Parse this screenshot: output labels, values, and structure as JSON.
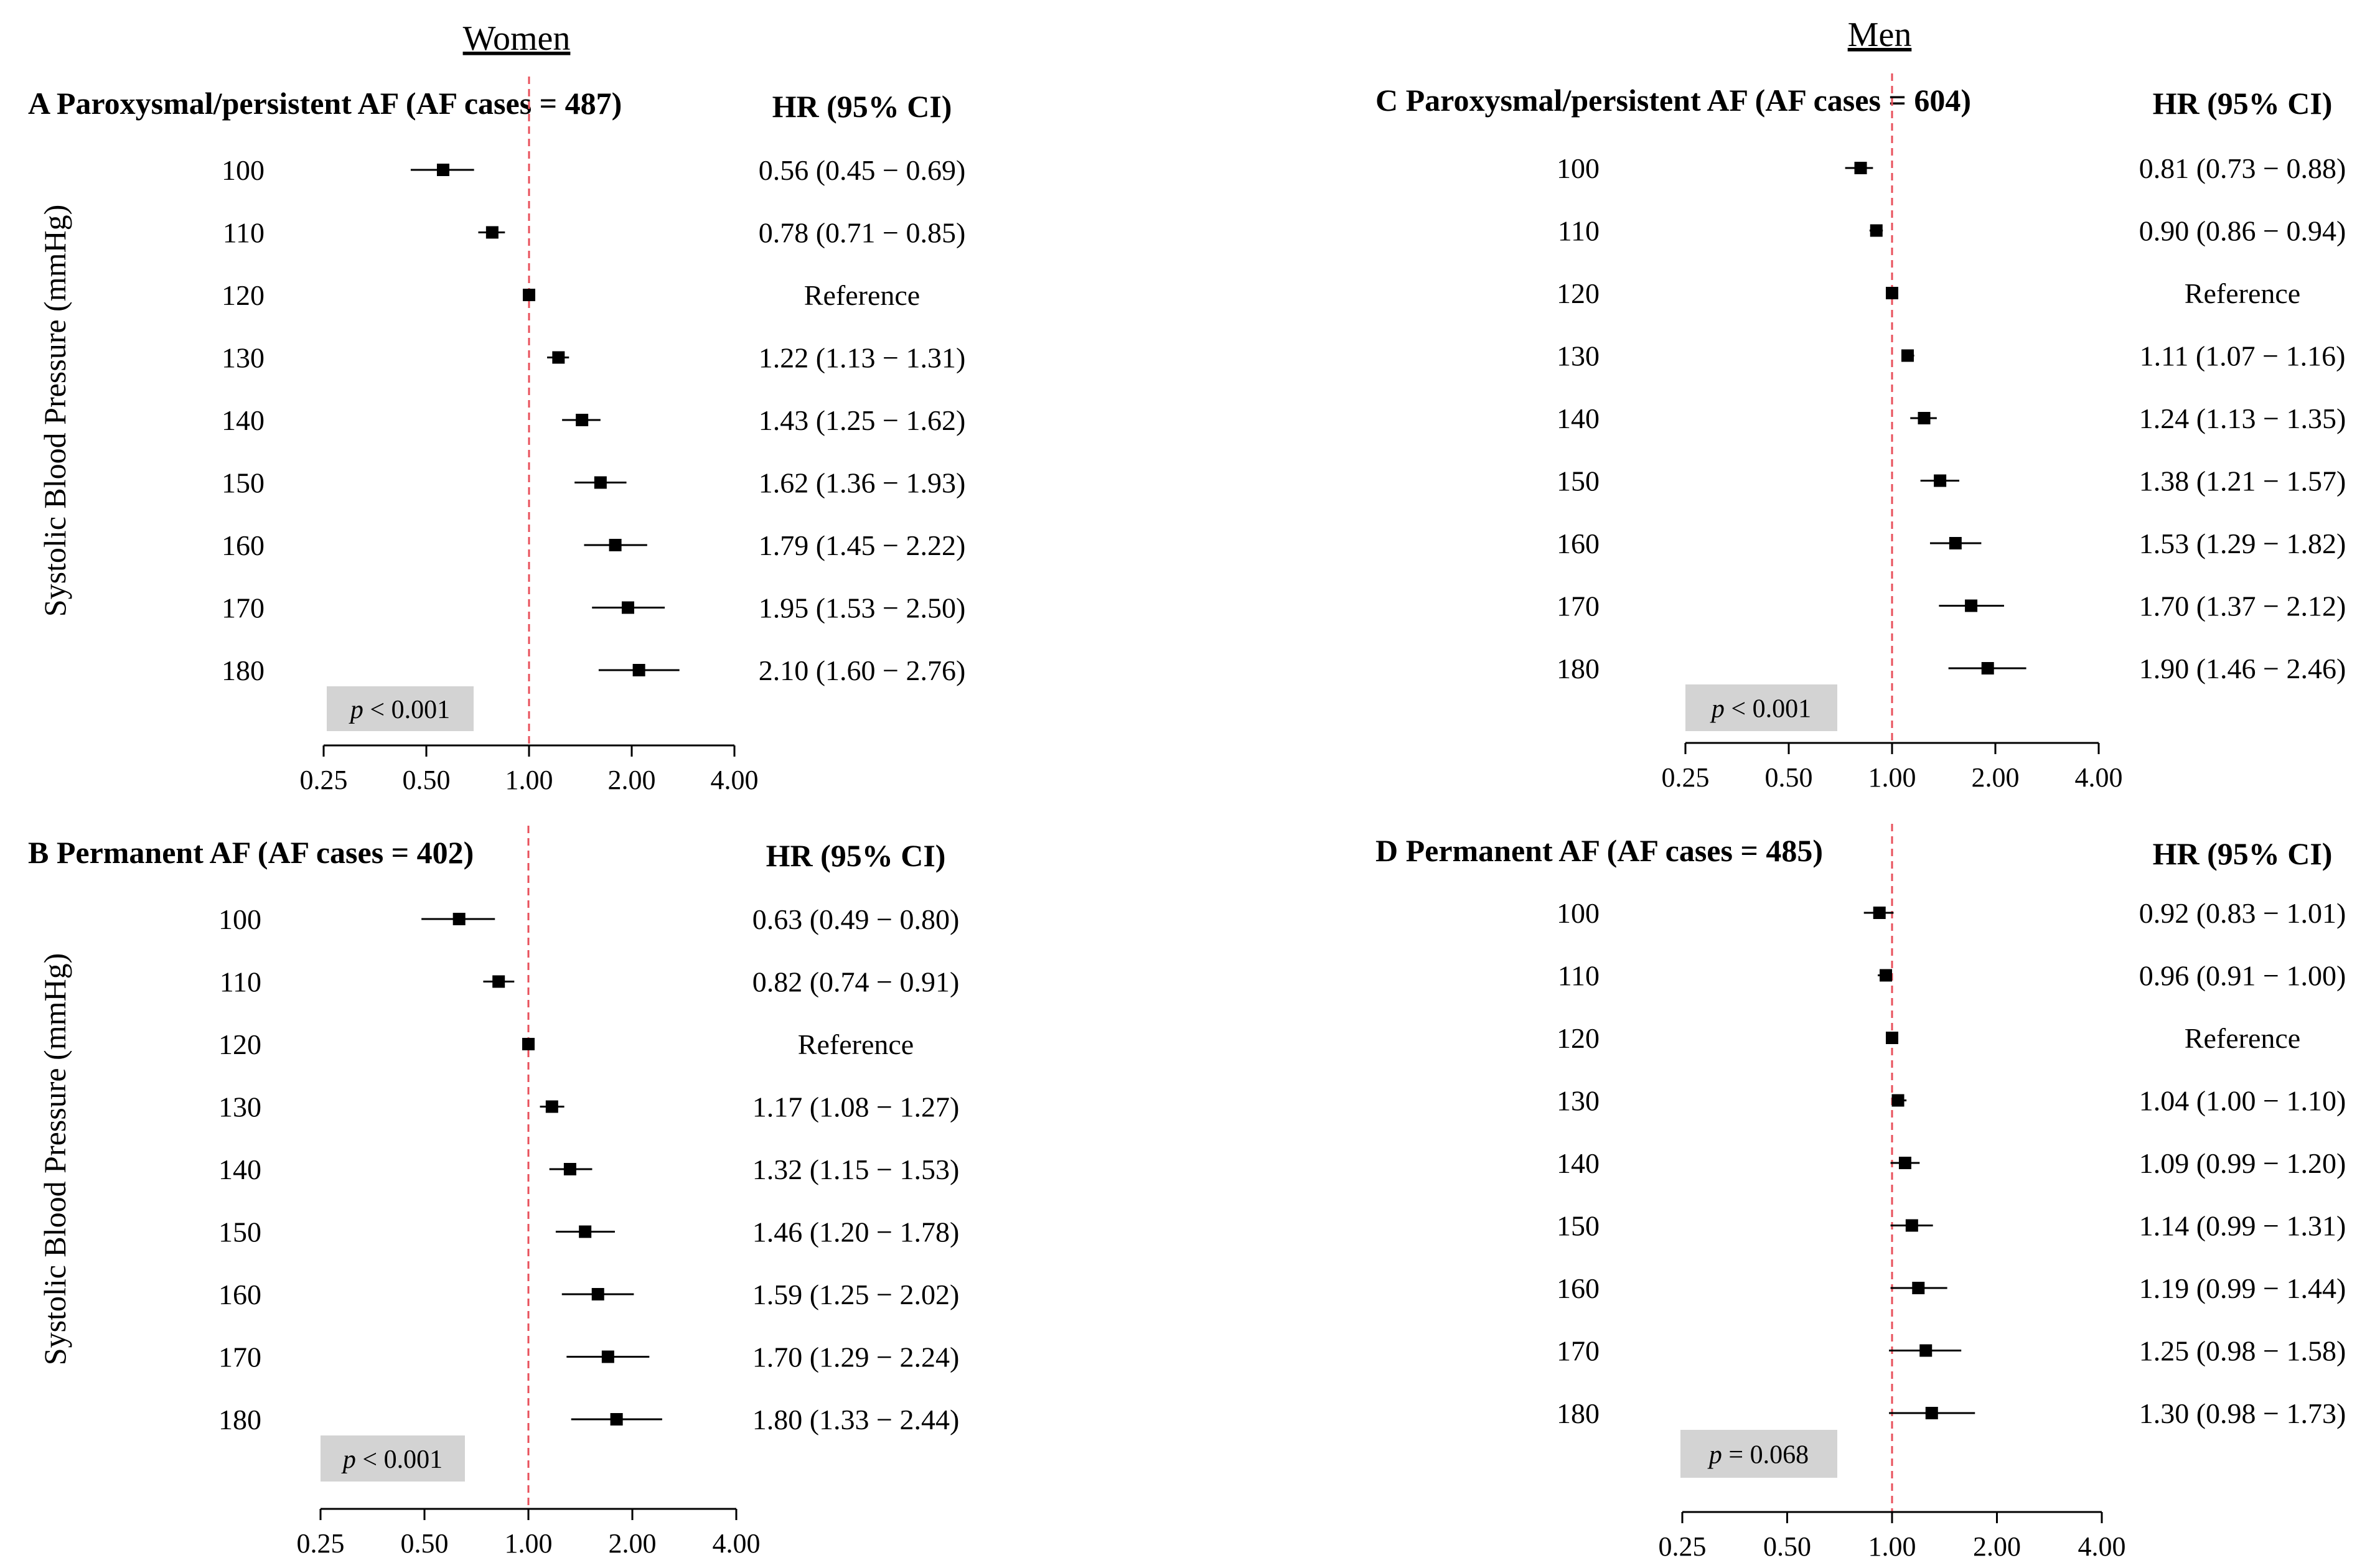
{
  "headers": {
    "women": "Women",
    "men": "Men"
  },
  "ylabel": "Systolic Blood Pressure (mmHg)",
  "column_header": "HR (95% CI)",
  "colors": {
    "reference_line": "#e8505b",
    "marker": "#000000",
    "pbox": "#d3d3d3",
    "ci_light": "#b0b0b0"
  },
  "chart_data": [
    {
      "panel": "A",
      "group": "Women",
      "type": "forest",
      "title": "A Paroxysmal/persistent AF (AF cases = 487)",
      "xscale": "log2",
      "xlim": [
        0.25,
        4.0
      ],
      "xticks": [
        "0.25",
        "0.50",
        "1.00",
        "2.00",
        "4.00"
      ],
      "categories": [
        "100",
        "110",
        "120",
        "130",
        "140",
        "150",
        "160",
        "170",
        "180"
      ],
      "hr": [
        0.56,
        0.78,
        1.0,
        1.22,
        1.43,
        1.62,
        1.79,
        1.95,
        2.1
      ],
      "lower": [
        0.45,
        0.71,
        1.0,
        1.13,
        1.25,
        1.36,
        1.45,
        1.53,
        1.6
      ],
      "upper": [
        0.69,
        0.85,
        1.0,
        1.31,
        1.62,
        1.93,
        2.22,
        2.5,
        2.76
      ],
      "labels": [
        "0.56 (0.45 − 0.69)",
        "0.78 (0.71 − 0.85)",
        "Reference",
        "1.22 (1.13 − 1.31)",
        "1.43 (1.25 − 1.62)",
        "1.62 (1.36 − 1.93)",
        "1.79 (1.45 − 2.22)",
        "1.95 (1.53 − 2.50)",
        "2.10 (1.60 − 2.76)"
      ],
      "p_prefix": "p",
      "p_rest": " < 0.001"
    },
    {
      "panel": "B",
      "group": "Women",
      "type": "forest",
      "title": "B Permanent AF (AF cases = 402)",
      "xscale": "log2",
      "xlim": [
        0.25,
        4.0
      ],
      "xticks": [
        "0.25",
        "0.50",
        "1.00",
        "2.00",
        "4.00"
      ],
      "categories": [
        "100",
        "110",
        "120",
        "130",
        "140",
        "150",
        "160",
        "170",
        "180"
      ],
      "hr": [
        0.63,
        0.82,
        1.0,
        1.17,
        1.32,
        1.46,
        1.59,
        1.7,
        1.8
      ],
      "lower": [
        0.49,
        0.74,
        1.0,
        1.08,
        1.15,
        1.2,
        1.25,
        1.29,
        1.33
      ],
      "upper": [
        0.8,
        0.91,
        1.0,
        1.27,
        1.53,
        1.78,
        2.02,
        2.24,
        2.44
      ],
      "labels": [
        "0.63 (0.49 − 0.80)",
        "0.82 (0.74 − 0.91)",
        "Reference",
        "1.17 (1.08 − 1.27)",
        "1.32 (1.15 − 1.53)",
        "1.46 (1.20 − 1.78)",
        "1.59 (1.25 − 2.02)",
        "1.70 (1.29 − 2.24)",
        "1.80 (1.33 − 2.44)"
      ],
      "p_prefix": "p",
      "p_rest": " < 0.001"
    },
    {
      "panel": "C",
      "group": "Men",
      "type": "forest",
      "title": "C Paroxysmal/persistent AF (AF cases = 604)",
      "xscale": "log2",
      "xlim": [
        0.25,
        4.0
      ],
      "xticks": [
        "0.25",
        "0.50",
        "1.00",
        "2.00",
        "4.00"
      ],
      "categories": [
        "100",
        "110",
        "120",
        "130",
        "140",
        "150",
        "160",
        "170",
        "180"
      ],
      "hr": [
        0.81,
        0.9,
        1.0,
        1.11,
        1.24,
        1.38,
        1.53,
        1.7,
        1.9
      ],
      "lower": [
        0.73,
        0.86,
        1.0,
        1.07,
        1.13,
        1.21,
        1.29,
        1.37,
        1.46
      ],
      "upper": [
        0.88,
        0.94,
        1.0,
        1.16,
        1.35,
        1.57,
        1.82,
        2.12,
        2.46
      ],
      "labels": [
        "0.81 (0.73 − 0.88)",
        "0.90 (0.86 − 0.94)",
        "Reference",
        "1.11 (1.07 − 1.16)",
        "1.24 (1.13 − 1.35)",
        "1.38 (1.21 − 1.57)",
        "1.53 (1.29 − 1.82)",
        "1.70 (1.37 − 2.12)",
        "1.90 (1.46 − 2.46)"
      ],
      "p_prefix": "p",
      "p_rest": " < 0.001"
    },
    {
      "panel": "D",
      "group": "Men",
      "type": "forest",
      "title": "D Permanent AF (AF cases = 485)",
      "xscale": "log2",
      "xlim": [
        0.25,
        4.0
      ],
      "xticks": [
        "0.25",
        "0.50",
        "1.00",
        "2.00",
        "4.00"
      ],
      "categories": [
        "100",
        "110",
        "120",
        "130",
        "140",
        "150",
        "160",
        "170",
        "180"
      ],
      "hr": [
        0.92,
        0.96,
        1.0,
        1.04,
        1.09,
        1.14,
        1.19,
        1.25,
        1.3
      ],
      "lower": [
        0.83,
        0.91,
        1.0,
        1.0,
        0.99,
        0.99,
        0.99,
        0.98,
        0.98
      ],
      "upper": [
        1.01,
        1.0,
        1.0,
        1.1,
        1.2,
        1.31,
        1.44,
        1.58,
        1.73
      ],
      "labels": [
        "0.92 (0.83 − 1.01)",
        "0.96 (0.91 − 1.00)",
        "Reference",
        "1.04 (1.00 − 1.10)",
        "1.09 (0.99 − 1.20)",
        "1.14 (0.99 − 1.31)",
        "1.19 (0.99 − 1.44)",
        "1.25 (0.98 − 1.58)",
        "1.30 (0.98 − 1.73)"
      ],
      "p_prefix": "p",
      "p_rest": " = 0.068"
    }
  ]
}
